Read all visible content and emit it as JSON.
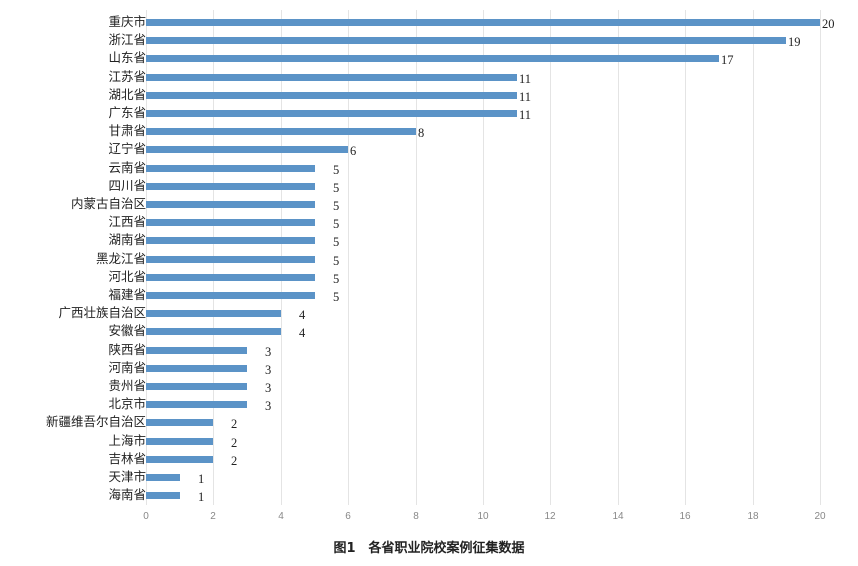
{
  "chart_data": {
    "type": "bar",
    "orientation": "horizontal",
    "title": "图1　各省职业院校案例征集数据",
    "xlabel": "",
    "ylabel": "",
    "xlim": [
      0,
      20
    ],
    "x_ticks": [
      "0",
      "2",
      "4",
      "6",
      "8",
      "10",
      "12",
      "14",
      "16",
      "18",
      "20"
    ],
    "grid": true,
    "legend": null,
    "bar_color": "#5b93c7",
    "categories": [
      "重庆市",
      "浙江省",
      "山东省",
      "江苏省",
      "湖北省",
      "广东省",
      "甘肃省",
      "辽宁省",
      "云南省",
      "四川省",
      "内蒙古自治区",
      "江西省",
      "湖南省",
      "黑龙江省",
      "河北省",
      "福建省",
      "广西壮族自治区",
      "安徽省",
      "陕西省",
      "河南省",
      "贵州省",
      "北京市",
      "新疆维吾尔自治区",
      "上海市",
      "吉林省",
      "天津市",
      "海南省"
    ],
    "values": [
      20,
      19,
      17,
      11,
      11,
      11,
      8,
      6,
      5,
      5,
      5,
      5,
      5,
      5,
      5,
      5,
      4,
      4,
      3,
      3,
      3,
      3,
      2,
      2,
      2,
      1,
      1
    ]
  },
  "caption": "图1　各省职业院校案例征集数据"
}
